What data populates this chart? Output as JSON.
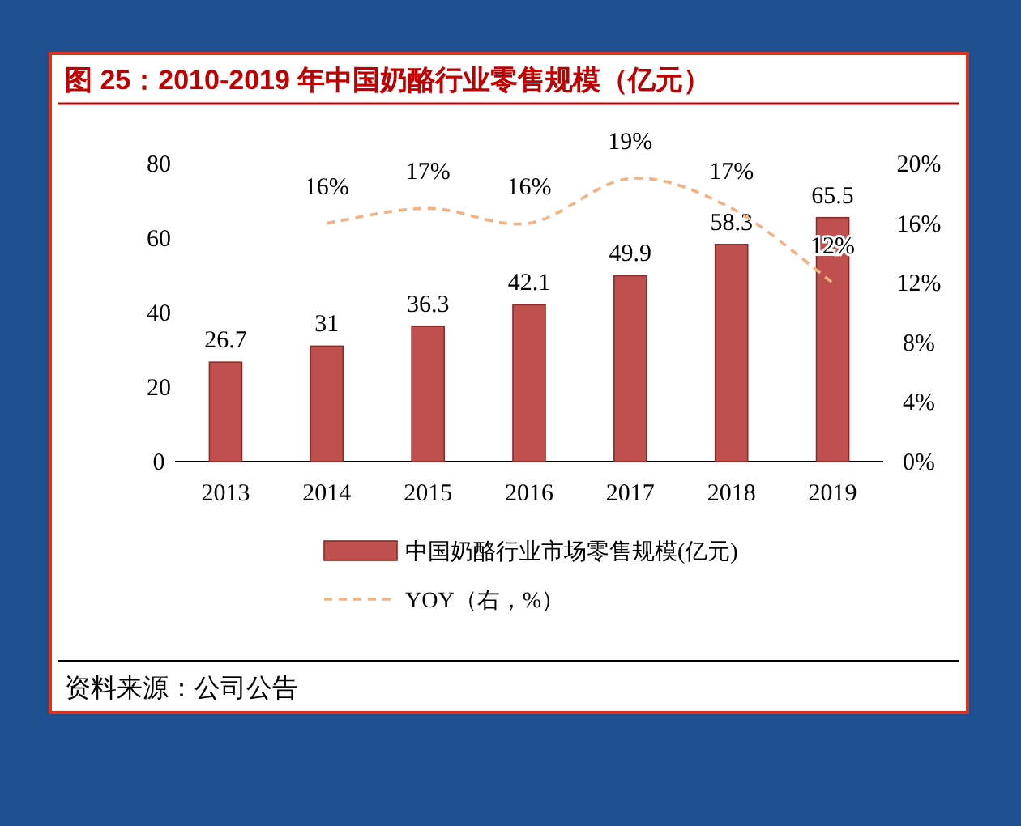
{
  "chart_data": {
    "type": "bar",
    "title": "图 25：2010-2019 年中国奶酪行业零售规模（亿元）",
    "categories": [
      "2013",
      "2014",
      "2015",
      "2016",
      "2017",
      "2018",
      "2019"
    ],
    "series": [
      {
        "name": "中国奶酪行业市场零售规模(亿元)",
        "color": "#c0504d",
        "values": [
          26.7,
          31,
          36.3,
          42.1,
          49.9,
          58.3,
          65.5
        ],
        "value_labels": [
          "26.7",
          "31",
          "36.3",
          "42.1",
          "49.9",
          "58.3",
          "65.5"
        ]
      },
      {
        "name": "YOY（右，%）",
        "type": "line",
        "axis": "y2",
        "color": "#f4b183",
        "line_style": "dashed",
        "values": [
          null,
          16,
          17,
          16,
          19,
          17,
          12
        ],
        "value_labels": [
          null,
          "16%",
          "17%",
          "16%",
          "19%",
          "17%",
          "12%"
        ]
      }
    ],
    "ylim": [
      0,
      80
    ],
    "yticks": [
      0,
      20,
      40,
      60,
      80
    ],
    "y2lim": [
      0,
      20
    ],
    "y2ticks": [
      {
        "value": 0,
        "label": "0%"
      },
      {
        "value": 4,
        "label": "4%"
      },
      {
        "value": 8,
        "label": "8%"
      },
      {
        "value": 12,
        "label": "12%"
      },
      {
        "value": 16,
        "label": "16%"
      },
      {
        "value": 20,
        "label": "20%"
      }
    ],
    "legend": "bottom",
    "annotations": [
      "资料来源：公司公告"
    ]
  }
}
